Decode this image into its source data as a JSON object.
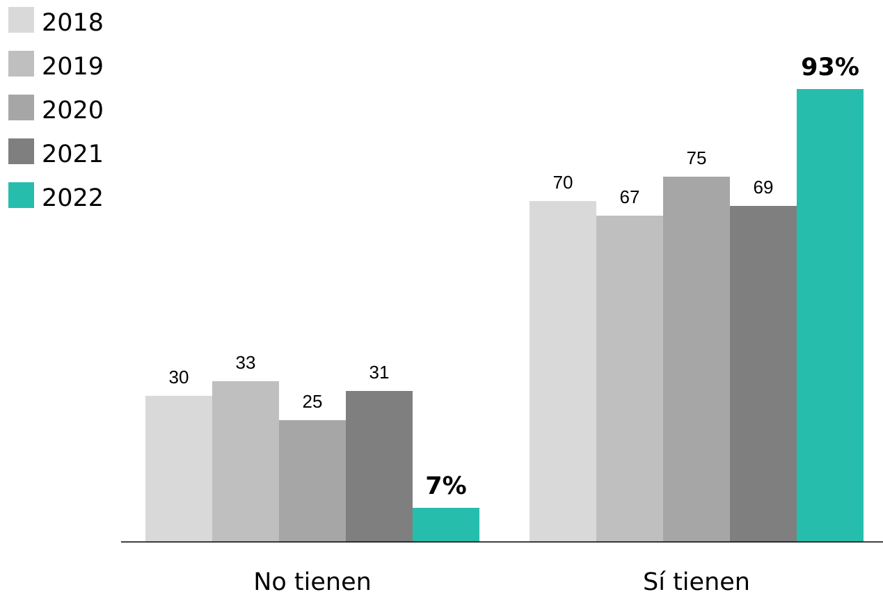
{
  "chart_data": {
    "type": "bar",
    "categories": [
      "No tienen",
      "Sí tienen"
    ],
    "series": [
      {
        "name": "2018",
        "values": [
          30,
          70
        ],
        "color": "#d9d9d9",
        "labels": [
          "30",
          "70"
        ]
      },
      {
        "name": "2019",
        "values": [
          33,
          67
        ],
        "color": "#bfbfbf",
        "labels": [
          "33",
          "67"
        ]
      },
      {
        "name": "2020",
        "values": [
          25,
          75
        ],
        "color": "#a6a6a6",
        "labels": [
          "25",
          "75"
        ]
      },
      {
        "name": "2021",
        "values": [
          31,
          69
        ],
        "color": "#7f7f7f",
        "labels": [
          "31",
          "69"
        ]
      },
      {
        "name": "2022",
        "values": [
          7,
          93
        ],
        "color": "#26bdad",
        "labels": [
          "7%",
          "93%"
        ],
        "bold_labels": true
      }
    ],
    "ylim": [
      0,
      100
    ],
    "grid": false,
    "legend_position": "top-left"
  }
}
